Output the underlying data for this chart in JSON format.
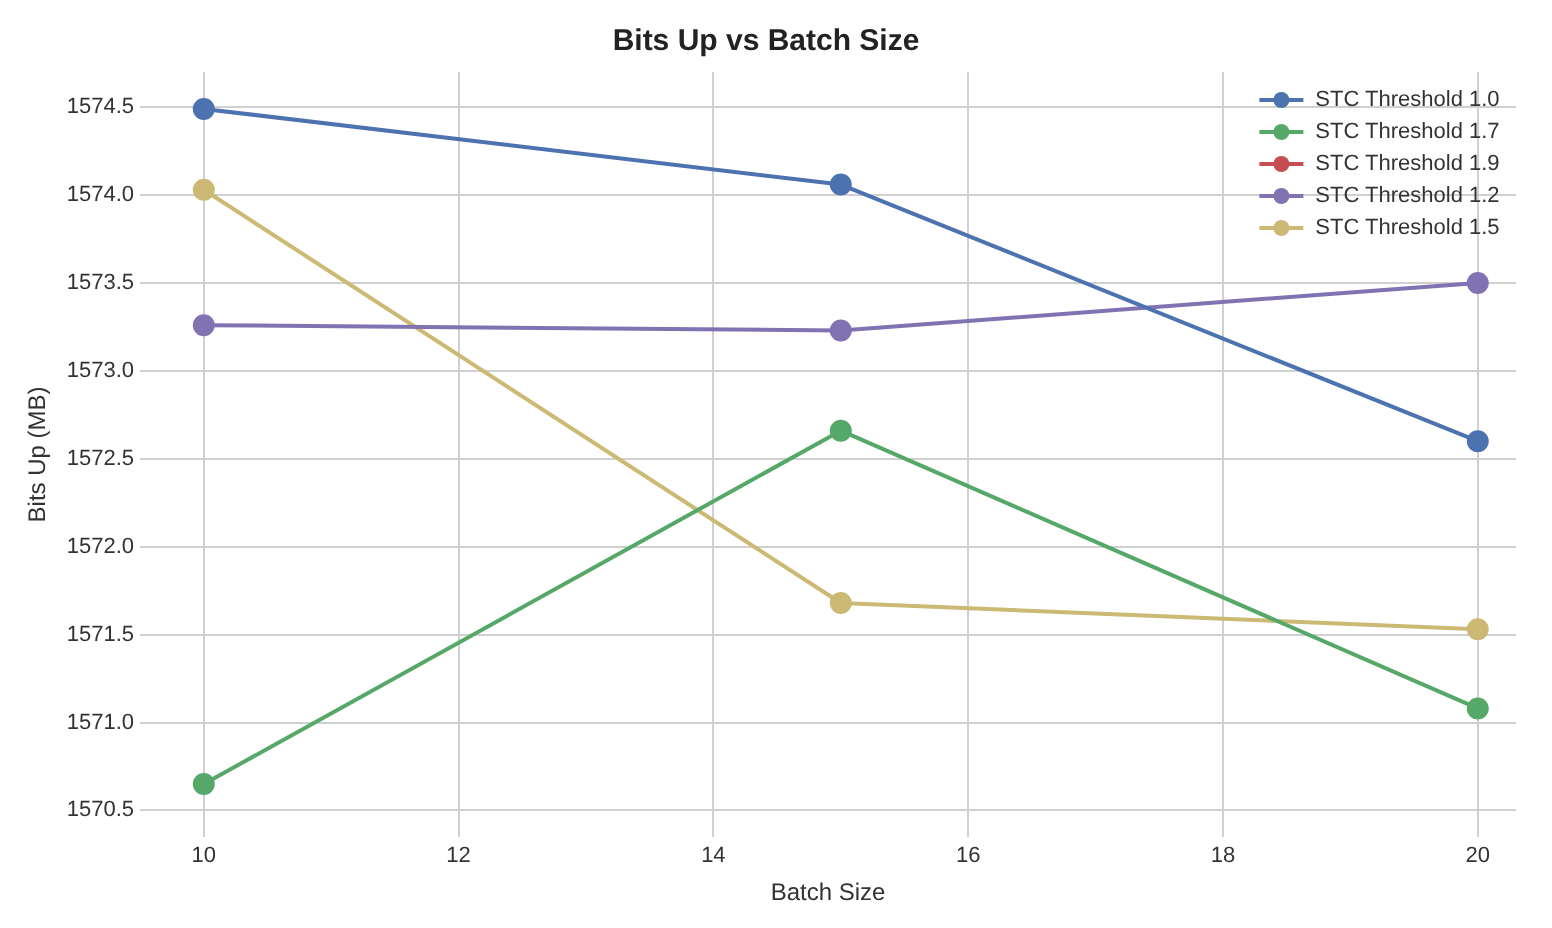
{
  "chart_data": {
    "type": "line",
    "title": "Bits Up vs Batch Size",
    "xlabel": "Batch Size",
    "ylabel": "Bits Up (MB)",
    "x": [
      10,
      15,
      20
    ],
    "series": [
      {
        "name": "STC Threshold 1.0",
        "color": "#4c72b0",
        "values": [
          1574.49,
          1574.06,
          1572.6
        ]
      },
      {
        "name": "STC Threshold 1.7",
        "color": "#55a868",
        "values": [
          1570.65,
          1572.66,
          1571.08
        ]
      },
      {
        "name": "STC Threshold 1.9",
        "color": "#c44e52",
        "values": [
          null,
          null,
          null
        ]
      },
      {
        "name": "STC Threshold 1.2",
        "color": "#8172b2",
        "values": [
          1573.26,
          1573.23,
          1573.5
        ]
      },
      {
        "name": "STC Threshold 1.5",
        "color": "#ccb974",
        "values": [
          1574.03,
          1571.68,
          1571.53
        ]
      }
    ],
    "xlim": [
      9.5,
      20.3
    ],
    "xticks": [
      10,
      12,
      14,
      16,
      18,
      20
    ],
    "ylim": [
      1570.35,
      1574.7
    ],
    "yticks": [
      1570.5,
      {
        "value": 1571,
        "label": "1571.0"
      },
      1571.5,
      {
        "value": 1572,
        "label": "1572.0"
      },
      1572.5,
      {
        "value": 1573,
        "label": "1573.0"
      },
      1573.5,
      {
        "value": 1574,
        "label": "1574.0"
      },
      1574.5
    ],
    "grid": true,
    "legend": "top right",
    "marker": "circle",
    "line_style": "solid"
  }
}
